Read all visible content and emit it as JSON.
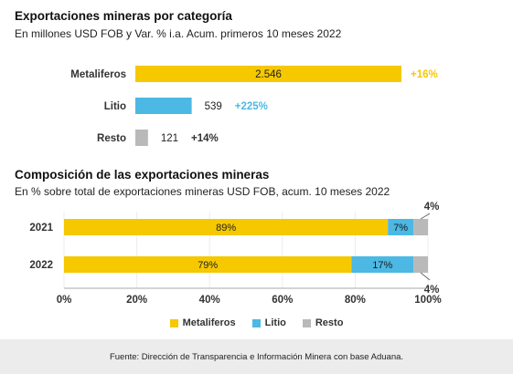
{
  "colors": {
    "metaliferos": "#F5C800",
    "litio": "#4CB8E4",
    "resto": "#B9B9B9",
    "pct_metaliferos": "#F5C800",
    "pct_litio": "#4CB8E4",
    "pct_resto": "#333333"
  },
  "chart_data": [
    {
      "type": "bar",
      "orientation": "horizontal",
      "title": "Exportaciones mineras por categoría",
      "subtitle": "En millones USD FOB y Var. % i.a. Acum. primeros 10 meses 2022",
      "categories": [
        "Metaliferos",
        "Litio",
        "Resto"
      ],
      "values": [
        2546,
        539,
        121
      ],
      "value_labels": [
        "2.546",
        "539",
        "121"
      ],
      "change_labels": [
        "+16%",
        "+225%",
        "+14%"
      ],
      "xlim": [
        0,
        2546
      ]
    },
    {
      "type": "bar",
      "orientation": "horizontal",
      "stacked": true,
      "title": "Composición de las exportaciones mineras",
      "subtitle": "En % sobre total de exportaciones mineras USD FOB, acum. 10 meses 2022",
      "categories": [
        "2021",
        "2022"
      ],
      "series": [
        {
          "name": "Metaliferos",
          "values": [
            89,
            79
          ],
          "labels": [
            "89%",
            "79%"
          ]
        },
        {
          "name": "Litio",
          "values": [
            7,
            17
          ],
          "labels": [
            "7%",
            "17%"
          ]
        },
        {
          "name": "Resto",
          "values": [
            4,
            4
          ],
          "labels": [
            "4%",
            "4%"
          ]
        }
      ],
      "xlim": [
        0,
        100
      ],
      "xticks": [
        "0%",
        "20%",
        "40%",
        "60%",
        "80%",
        "100%"
      ],
      "legend": "bottom-center"
    }
  ],
  "footer": "Fuente: Dirección de Transparencia e Información Minera con base Aduana."
}
